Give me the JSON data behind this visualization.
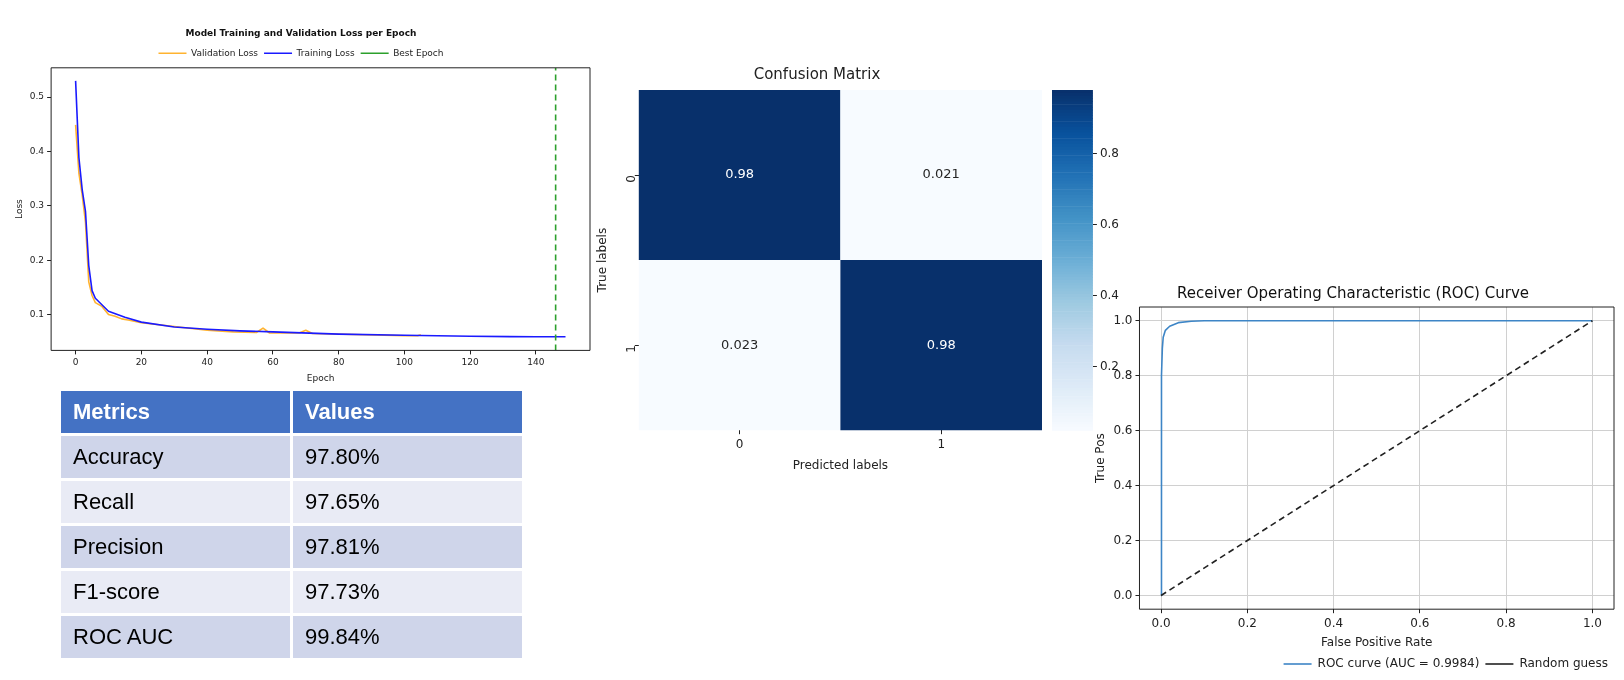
{
  "chart_data": [
    {
      "type": "line",
      "title": "Model Training and Validation Loss per Epoch",
      "xlabel": "Epoch",
      "ylabel": "Loss",
      "xlim": [
        -7.45,
        156.45
      ],
      "ylim": [
        0.034,
        0.554
      ],
      "xticks": [
        0,
        20,
        40,
        60,
        80,
        100,
        120,
        140
      ],
      "yticks": [
        0.1,
        0.2,
        0.3,
        0.4,
        0.5
      ],
      "grid": false,
      "legend": "top",
      "series": [
        {
          "name": "Validation Loss",
          "color": "#ffb330",
          "x": [
            0,
            1,
            2,
            3,
            4,
            5,
            6,
            8,
            10,
            12,
            14,
            16,
            20,
            24,
            40,
            48,
            55,
            57,
            59,
            62,
            68,
            70,
            72,
            100,
            104,
            105
          ],
          "values": [
            0.449,
            0.36,
            0.32,
            0.27,
            0.16,
            0.135,
            0.122,
            0.115,
            0.1,
            0.097,
            0.092,
            0.09,
            0.085,
            0.082,
            0.071,
            0.068,
            0.067,
            0.075,
            0.066,
            0.066,
            0.066,
            0.071,
            0.065,
            0.061,
            0.061,
            0.063
          ]
        },
        {
          "name": "Training Loss",
          "color": "#1a1aff",
          "x": [
            0,
            1,
            2,
            3,
            4,
            5,
            6,
            8,
            10,
            15,
            20,
            30,
            40,
            50,
            60,
            80,
            100,
            120,
            140,
            149
          ],
          "values": [
            0.53,
            0.389,
            0.33,
            0.29,
            0.19,
            0.144,
            0.13,
            0.118,
            0.106,
            0.095,
            0.086,
            0.077,
            0.073,
            0.07,
            0.068,
            0.064,
            0.062,
            0.06,
            0.059,
            0.059
          ]
        }
      ],
      "ref_lines": [
        {
          "axis": "x",
          "value": 146,
          "label": "Best Epoch",
          "color": "#2ca02c",
          "line_style": "dashed"
        }
      ]
    },
    {
      "type": "other",
      "annotations": [
        "Metrics",
        "Values"
      ],
      "categories": [
        "Accuracy",
        "Recall",
        "Precision",
        "F1-score",
        "ROC AUC"
      ],
      "value_labels": [
        "97.80%",
        "97.65%",
        "97.81%",
        "97.73%",
        "99.84%"
      ]
    },
    {
      "type": "heatmap",
      "title": "Confusion Matrix",
      "xlabel": "Predicted labels",
      "ylabel": "True labels",
      "categories": [
        "0",
        "1"
      ],
      "y_categories": [
        "0",
        "1"
      ],
      "cells": [
        [
          0.98,
          0.021
        ],
        [
          0.023,
          0.98
        ]
      ],
      "data_labels": true,
      "clim": [
        0.021,
        0.98
      ],
      "cticks": [
        0.2,
        0.4,
        0.6,
        0.8
      ]
    },
    {
      "type": "line",
      "title": "Receiver Operating Characteristic (ROC) Curve",
      "xlabel": "False Positive Rate",
      "ylabel": "True Pos",
      "xlim": [
        -0.05,
        1.05
      ],
      "ylim": [
        -0.05,
        1.05
      ],
      "xticks": [
        {
          "value": 0,
          "label": "0.0"
        },
        {
          "value": 0.2,
          "label": "0.2"
        },
        {
          "value": 0.4,
          "label": "0.4"
        },
        {
          "value": 0.6,
          "label": "0.6"
        },
        {
          "value": 0.8,
          "label": "0.8"
        },
        {
          "value": 1,
          "label": "1.0"
        }
      ],
      "yticks": [
        {
          "value": 0,
          "label": "0.0"
        },
        {
          "value": 0.2,
          "label": "0.2"
        },
        {
          "value": 0.4,
          "label": "0.4"
        },
        {
          "value": 0.6,
          "label": "0.6"
        },
        {
          "value": 0.8,
          "label": "0.8"
        },
        {
          "value": 1,
          "label": "1.0"
        }
      ],
      "grid": true,
      "legend": "bottom right",
      "series": [
        {
          "name": "ROC curve (AUC = 0.9984)",
          "color": "#3d85c6",
          "x": [
            0,
            0.001,
            0.003,
            0.005,
            0.01,
            0.02,
            0.04,
            0.07,
            0.1,
            1
          ],
          "values": [
            0,
            0.8,
            0.9,
            0.94,
            0.965,
            0.98,
            0.993,
            0.998,
            1,
            1
          ]
        },
        {
          "name": "Random guess",
          "color": "#222222",
          "line_style": "dashed",
          "x": [
            0,
            1
          ],
          "values": [
            0,
            1
          ]
        }
      ]
    }
  ]
}
